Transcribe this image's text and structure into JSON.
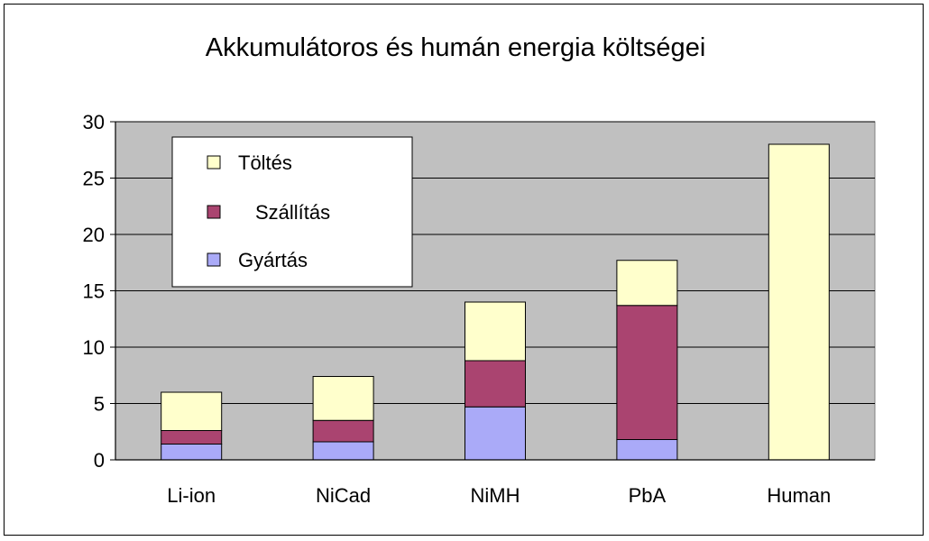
{
  "chart_data": {
    "type": "bar",
    "stacked": true,
    "title": "Akkumulátoros és humán energia költségei",
    "xlabel": "",
    "ylabel": "",
    "ylim": [
      0,
      30
    ],
    "yticks": [
      0,
      5,
      10,
      15,
      20,
      25,
      30
    ],
    "grid": true,
    "legend_position": "top-left",
    "categories": [
      "Li-ion",
      "NiCad",
      "NiMH",
      "PbA",
      "Human"
    ],
    "series": [
      {
        "name": "Gyártás",
        "color": "#aaaaf8",
        "values": [
          1.4,
          1.6,
          4.7,
          1.8,
          0
        ]
      },
      {
        "name": "Szállítás",
        "color": "#aa4470",
        "values": [
          1.2,
          1.9,
          4.1,
          11.9,
          0
        ]
      },
      {
        "name": "Töltés",
        "color": "#ffffcc",
        "values": [
          3.4,
          3.9,
          5.2,
          4.0,
          28.0
        ]
      }
    ],
    "legend_order": [
      "Töltés",
      "Szállítás",
      "Gyártás"
    ],
    "plot_background": "#c0c0c0"
  }
}
